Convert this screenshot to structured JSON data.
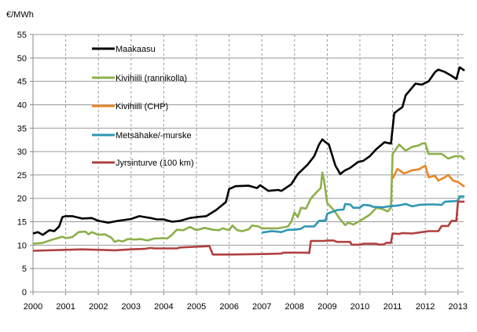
{
  "chart_data": {
    "type": "line",
    "ylabel": "€/MWh",
    "xlim": [
      2000,
      2013.2
    ],
    "ylim": [
      0,
      55
    ],
    "yticks": [
      0,
      5,
      10,
      15,
      20,
      25,
      30,
      35,
      40,
      45,
      50,
      55
    ],
    "xticks": [
      "2000",
      "2001",
      "2002",
      "2003",
      "2004",
      "2005",
      "2006",
      "2007",
      "2008",
      "2009",
      "2010",
      "2011",
      "2012",
      "2013"
    ],
    "grid": {
      "horizontal": "solid",
      "vertical": "dashed"
    },
    "legend_placement": "top-left",
    "series": [
      {
        "name": "Maakaasu",
        "color": "#000000",
        "points": [
          [
            2000,
            12.5
          ],
          [
            2000.15,
            12.8
          ],
          [
            2000.3,
            12.2
          ],
          [
            2000.5,
            13.2
          ],
          [
            2000.65,
            13
          ],
          [
            2000.8,
            14
          ],
          [
            2000.9,
            16
          ],
          [
            2001,
            16.2
          ],
          [
            2001.2,
            16.2
          ],
          [
            2001.5,
            15.7
          ],
          [
            2001.8,
            15.8
          ],
          [
            2002,
            15.2
          ],
          [
            2002.3,
            14.8
          ],
          [
            2002.6,
            15.2
          ],
          [
            2003,
            15.6
          ],
          [
            2003.25,
            16.2
          ],
          [
            2003.6,
            15.8
          ],
          [
            2003.8,
            15.5
          ],
          [
            2004,
            15.5
          ],
          [
            2004.25,
            15
          ],
          [
            2004.5,
            15.2
          ],
          [
            2004.8,
            15.8
          ],
          [
            2005,
            16
          ],
          [
            2005.3,
            16.2
          ],
          [
            2005.6,
            17.5
          ],
          [
            2005.9,
            19.2
          ],
          [
            2006,
            22
          ],
          [
            2006.2,
            22.6
          ],
          [
            2006.6,
            22.7
          ],
          [
            2006.85,
            22.2
          ],
          [
            2006.95,
            22.8
          ],
          [
            2007.2,
            21.6
          ],
          [
            2007.5,
            21.8
          ],
          [
            2007.6,
            21.6
          ],
          [
            2007.9,
            23
          ],
          [
            2008.1,
            25.2
          ],
          [
            2008.4,
            27.2
          ],
          [
            2008.6,
            29
          ],
          [
            2008.75,
            31.5
          ],
          [
            2008.85,
            32.6
          ],
          [
            2008.95,
            32
          ],
          [
            2009.05,
            31.5
          ],
          [
            2009.25,
            27
          ],
          [
            2009.4,
            25.2
          ],
          [
            2009.55,
            26
          ],
          [
            2009.7,
            26.5
          ],
          [
            2009.95,
            27.8
          ],
          [
            2010.1,
            28
          ],
          [
            2010.3,
            29
          ],
          [
            2010.5,
            30.5
          ],
          [
            2010.75,
            32
          ],
          [
            2010.95,
            31.7
          ],
          [
            2011.05,
            38.2
          ],
          [
            2011.2,
            39
          ],
          [
            2011.3,
            39.5
          ],
          [
            2011.4,
            42
          ],
          [
            2011.7,
            44.5
          ],
          [
            2011.9,
            44.3
          ],
          [
            2012.1,
            45
          ],
          [
            2012.3,
            47
          ],
          [
            2012.4,
            47.5
          ],
          [
            2012.6,
            47
          ],
          [
            2012.8,
            46.2
          ],
          [
            2012.95,
            45.5
          ],
          [
            2013.05,
            48
          ],
          [
            2013.2,
            47.3
          ]
        ]
      },
      {
        "name": "Kivihiili (rannikolla)",
        "color": "#8cb04a",
        "points": [
          [
            2000,
            10.3
          ],
          [
            2000.3,
            10.5
          ],
          [
            2000.6,
            11.2
          ],
          [
            2000.9,
            11.8
          ],
          [
            2001,
            11.5
          ],
          [
            2001.2,
            11.7
          ],
          [
            2001.4,
            12.8
          ],
          [
            2001.6,
            12.9
          ],
          [
            2001.7,
            12.3
          ],
          [
            2001.8,
            12.8
          ],
          [
            2002,
            12.2
          ],
          [
            2002.2,
            12.3
          ],
          [
            2002.4,
            11.6
          ],
          [
            2002.5,
            10.7
          ],
          [
            2002.6,
            11
          ],
          [
            2002.75,
            10.8
          ],
          [
            2002.9,
            11.3
          ],
          [
            2003.1,
            11.2
          ],
          [
            2003.3,
            11.3
          ],
          [
            2003.5,
            11
          ],
          [
            2003.7,
            11.4
          ],
          [
            2004,
            11.5
          ],
          [
            2004.1,
            11.4
          ],
          [
            2004.25,
            12.2
          ],
          [
            2004.4,
            13.3
          ],
          [
            2004.6,
            13.2
          ],
          [
            2004.8,
            13.9
          ],
          [
            2005,
            13.2
          ],
          [
            2005.25,
            13.7
          ],
          [
            2005.5,
            13.3
          ],
          [
            2005.7,
            13.2
          ],
          [
            2005.8,
            13.6
          ],
          [
            2006,
            13.2
          ],
          [
            2006.1,
            14.2
          ],
          [
            2006.25,
            13.2
          ],
          [
            2006.4,
            13
          ],
          [
            2006.6,
            13.4
          ],
          [
            2006.7,
            14.2
          ],
          [
            2006.9,
            14
          ],
          [
            2007,
            13.6
          ],
          [
            2007.5,
            13.6
          ],
          [
            2007.8,
            14
          ],
          [
            2007.9,
            15
          ],
          [
            2008,
            17
          ],
          [
            2008.1,
            16
          ],
          [
            2008.2,
            18
          ],
          [
            2008.35,
            17.8
          ],
          [
            2008.5,
            20
          ],
          [
            2008.7,
            21.5
          ],
          [
            2008.8,
            22.2
          ],
          [
            2008.85,
            25.5
          ],
          [
            2008.9,
            24
          ],
          [
            2009,
            19
          ],
          [
            2009.2,
            17.5
          ],
          [
            2009.4,
            15.5
          ],
          [
            2009.55,
            14.3
          ],
          [
            2009.65,
            14.8
          ],
          [
            2009.8,
            14.4
          ],
          [
            2010,
            15.2
          ],
          [
            2010.3,
            16.5
          ],
          [
            2010.5,
            18
          ],
          [
            2010.7,
            17.7
          ],
          [
            2010.85,
            17.2
          ],
          [
            2010.95,
            18
          ],
          [
            2011,
            29.5
          ],
          [
            2011.2,
            31.5
          ],
          [
            2011.4,
            30.2
          ],
          [
            2011.6,
            31
          ],
          [
            2011.8,
            31.3
          ],
          [
            2011.9,
            31.7
          ],
          [
            2012,
            31.8
          ],
          [
            2012.1,
            29.5
          ],
          [
            2012.3,
            29.5
          ],
          [
            2012.5,
            29.5
          ],
          [
            2012.7,
            28.5
          ],
          [
            2012.9,
            29
          ],
          [
            2013.1,
            29
          ],
          [
            2013.2,
            28.3
          ]
        ]
      },
      {
        "name": "Kivihiili (CHP)",
        "color": "#e8862a",
        "points": [
          [
            2011,
            24.2
          ],
          [
            2011.15,
            26.3
          ],
          [
            2011.35,
            25.3
          ],
          [
            2011.6,
            26
          ],
          [
            2011.8,
            26.2
          ],
          [
            2012,
            27
          ],
          [
            2012.1,
            24.5
          ],
          [
            2012.3,
            24.8
          ],
          [
            2012.4,
            23.8
          ],
          [
            2012.6,
            24.5
          ],
          [
            2012.7,
            25
          ],
          [
            2012.85,
            23.8
          ],
          [
            2013,
            23.5
          ],
          [
            2013.2,
            22.5
          ]
        ]
      },
      {
        "name": "Metsähake/-murske",
        "color": "#2e96b4",
        "points": [
          [
            2007,
            12.7
          ],
          [
            2007.3,
            13
          ],
          [
            2007.6,
            12.8
          ],
          [
            2007.8,
            13.3
          ],
          [
            2008,
            13.3
          ],
          [
            2008.2,
            13.5
          ],
          [
            2008.3,
            14
          ],
          [
            2008.6,
            14
          ],
          [
            2008.75,
            15.2
          ],
          [
            2008.95,
            15.3
          ],
          [
            2009,
            16.7
          ],
          [
            2009.3,
            17.5
          ],
          [
            2009.5,
            17.6
          ],
          [
            2009.55,
            18.8
          ],
          [
            2009.7,
            18.7
          ],
          [
            2009.8,
            18
          ],
          [
            2010,
            18
          ],
          [
            2010.1,
            18.6
          ],
          [
            2010.3,
            18.5
          ],
          [
            2010.4,
            18.2
          ],
          [
            2010.7,
            18.1
          ],
          [
            2010.9,
            18.3
          ],
          [
            2011.2,
            18.5
          ],
          [
            2011.4,
            18.8
          ],
          [
            2011.6,
            18.3
          ],
          [
            2011.8,
            18.6
          ],
          [
            2012,
            18.7
          ],
          [
            2012.3,
            18.7
          ],
          [
            2012.5,
            18.6
          ],
          [
            2012.6,
            19.3
          ],
          [
            2012.9,
            19.4
          ],
          [
            2013,
            19.5
          ],
          [
            2013.05,
            20.4
          ],
          [
            2013.2,
            20.4
          ]
        ]
      },
      {
        "name": "Jyrsinturve (100 km)",
        "color": "#b04040",
        "points": [
          [
            2000,
            8.8
          ],
          [
            2001,
            9
          ],
          [
            2001.5,
            9.1
          ],
          [
            2002,
            9
          ],
          [
            2002.5,
            8.9
          ],
          [
            2003,
            9.1
          ],
          [
            2003.4,
            9.2
          ],
          [
            2003.6,
            9.4
          ],
          [
            2003.7,
            9.3
          ],
          [
            2004.4,
            9.3
          ],
          [
            2004.5,
            9.5
          ],
          [
            2005.4,
            9.8
          ],
          [
            2005.5,
            8
          ],
          [
            2006,
            8
          ],
          [
            2007,
            8.1
          ],
          [
            2007.6,
            8.2
          ],
          [
            2007.65,
            8.4
          ],
          [
            2008.4,
            8.4
          ],
          [
            2008.45,
            8.3
          ],
          [
            2008.5,
            10.9
          ],
          [
            2008.9,
            10.9
          ],
          [
            2009,
            11
          ],
          [
            2009.2,
            11
          ],
          [
            2009.3,
            10.7
          ],
          [
            2009.7,
            10.7
          ],
          [
            2009.75,
            10.1
          ],
          [
            2010,
            10.1
          ],
          [
            2010.1,
            10.3
          ],
          [
            2010.5,
            10.3
          ],
          [
            2010.6,
            10.1
          ],
          [
            2010.75,
            10.2
          ],
          [
            2010.8,
            10.5
          ],
          [
            2010.95,
            10.5
          ],
          [
            2011,
            12.5
          ],
          [
            2011.2,
            12.4
          ],
          [
            2011.3,
            12.6
          ],
          [
            2011.6,
            12.5
          ],
          [
            2011.8,
            12.7
          ],
          [
            2012,
            12.9
          ],
          [
            2012.1,
            13
          ],
          [
            2012.4,
            13
          ],
          [
            2012.5,
            14.1
          ],
          [
            2012.7,
            14.1
          ],
          [
            2012.8,
            15.2
          ],
          [
            2012.95,
            15.2
          ],
          [
            2013,
            19.3
          ],
          [
            2013.2,
            19.3
          ]
        ]
      }
    ]
  }
}
